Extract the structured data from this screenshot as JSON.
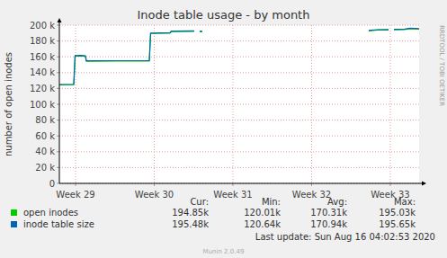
{
  "chart_data": {
    "type": "line",
    "title": "Inode table usage - by month",
    "y_label": "number of open inodes",
    "x": [
      28.794,
      28.977,
      28.994,
      29.068,
      29.125,
      29.137,
      29.525,
      29.937,
      29.954,
      30.2,
      30.217,
      30.508,
      30.543,
      30.577,
      30.611,
      30.646,
      32.725,
      32.839,
      32.977,
      33.011,
      33.046,
      33.183,
      33.251,
      33.366
    ],
    "xlim": [
      28.794,
      33.366
    ],
    "xticks": [
      {
        "value": 29,
        "label": "Week 29"
      },
      {
        "value": 30,
        "label": "Week 30"
      },
      {
        "value": 31,
        "label": "Week 31"
      },
      {
        "value": 32,
        "label": "Week 32"
      },
      {
        "value": 33,
        "label": "Week 33"
      }
    ],
    "ylim": [
      0,
      200000
    ],
    "yticks": [
      0,
      {
        "value": 20000,
        "label": "20 k"
      },
      {
        "value": 40000,
        "label": "40 k"
      },
      {
        "value": 60000,
        "label": "60 k"
      },
      {
        "value": 80000,
        "label": "80 k"
      },
      {
        "value": 100000,
        "label": "100 k"
      },
      {
        "value": 120000,
        "label": "120 k"
      },
      {
        "value": 140000,
        "label": "140 k"
      },
      {
        "value": 160000,
        "label": "160 k"
      },
      {
        "value": 180000,
        "label": "180 k"
      },
      {
        "value": 200000,
        "label": "200 k"
      }
    ],
    "grid": true,
    "series": [
      {
        "name": "open inodes",
        "color": "#00cc00",
        "values": [
          124500,
          124800,
          161000,
          161200,
          160800,
          154500,
          154600,
          154700,
          189500,
          190000,
          192000,
          192300,
          null,
          192000,
          191800,
          null,
          192800,
          193800,
          194000,
          null,
          194200,
          194500,
          195600,
          195000
        ]
      },
      {
        "name": "inode table size",
        "color": "#0066b3",
        "values": [
          125000,
          125300,
          161500,
          161700,
          161300,
          155000,
          155100,
          155200,
          190000,
          190500,
          192500,
          192800,
          null,
          192500,
          192300,
          null,
          193300,
          194300,
          194500,
          null,
          194700,
          195000,
          196100,
          195500
        ]
      }
    ],
    "legend_table": {
      "columns": [
        "Cur:",
        "Min:",
        "Avg:",
        "Max:"
      ],
      "rows": [
        [
          "194.85k",
          "120.01k",
          "170.31k",
          "195.03k"
        ],
        [
          "195.48k",
          "120.64k",
          "170.94k",
          "195.65k"
        ]
      ]
    },
    "footer": "Last update: Sun Aug 16 04:02:53 2020",
    "watermark": "RRDTOOL / TOBI OETIKER",
    "generator": "Munin 2.0.49"
  }
}
